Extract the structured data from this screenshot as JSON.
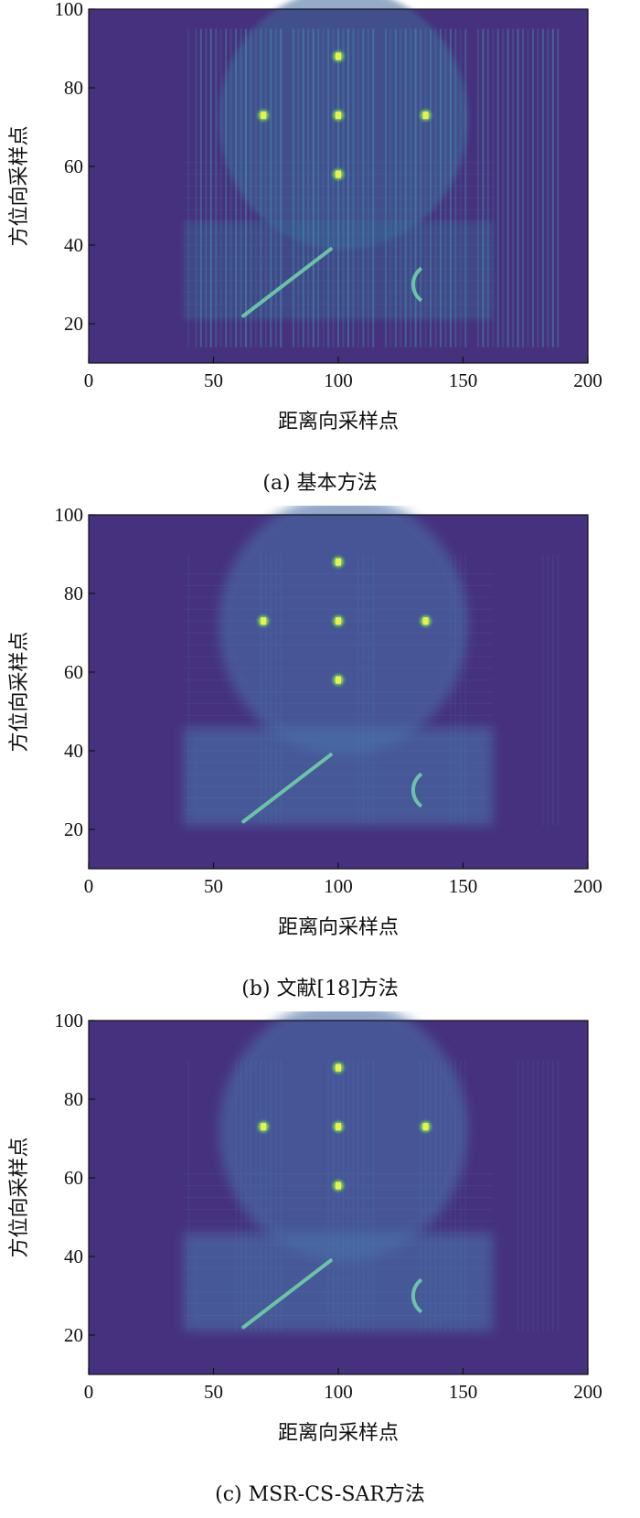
{
  "chart_data": [
    {
      "type": "heatmap",
      "caption": "(a) 基本方法",
      "xlabel": "距离向采样点",
      "ylabel": "方位向采样点",
      "xlim": [
        0,
        200
      ],
      "ylim": [
        10,
        100
      ],
      "xticks": [
        "0",
        "50",
        "100",
        "150",
        "200"
      ],
      "yticks": [
        "20",
        "40",
        "60",
        "80",
        "100"
      ],
      "colormap": "viridis",
      "background_color": "#46317e",
      "bright_points": [
        [
          70,
          73
        ],
        [
          100,
          73
        ],
        [
          135,
          73
        ],
        [
          100,
          88
        ],
        [
          100,
          58
        ]
      ],
      "features": {
        "diagonal_line": [
          [
            62,
            22
          ],
          [
            97,
            39
          ]
        ],
        "arc_center": [
          138,
          30
        ]
      }
    },
    {
      "type": "heatmap",
      "caption": "(b) 文献[18]方法",
      "xlabel": "距离向采样点",
      "ylabel": "方位向采样点",
      "xlim": [
        0,
        200
      ],
      "ylim": [
        10,
        100
      ],
      "xticks": [
        "0",
        "50",
        "100",
        "150",
        "200"
      ],
      "yticks": [
        "20",
        "40",
        "60",
        "80",
        "100"
      ],
      "colormap": "viridis",
      "background_color": "#46317e",
      "bright_points": [
        [
          70,
          73
        ],
        [
          100,
          73
        ],
        [
          135,
          73
        ],
        [
          100,
          88
        ],
        [
          100,
          58
        ]
      ],
      "features": {
        "diagonal_line": [
          [
            62,
            22
          ],
          [
            97,
            39
          ]
        ],
        "arc_center": [
          138,
          30
        ]
      }
    },
    {
      "type": "heatmap",
      "caption": "(c) MSR-CS-SAR方法",
      "xlabel": "距离向采样点",
      "ylabel": "方位向采样点",
      "xlim": [
        0,
        200
      ],
      "ylim": [
        10,
        100
      ],
      "xticks": [
        "0",
        "50",
        "100",
        "150",
        "200"
      ],
      "yticks": [
        "20",
        "40",
        "60",
        "80",
        "100"
      ],
      "colormap": "viridis",
      "background_color": "#46317e",
      "bright_points": [
        [
          70,
          73
        ],
        [
          100,
          73
        ],
        [
          135,
          73
        ],
        [
          100,
          88
        ],
        [
          100,
          58
        ]
      ],
      "features": {
        "diagonal_line": [
          [
            62,
            22
          ],
          [
            97,
            39
          ]
        ],
        "arc_center": [
          138,
          30
        ]
      }
    }
  ]
}
